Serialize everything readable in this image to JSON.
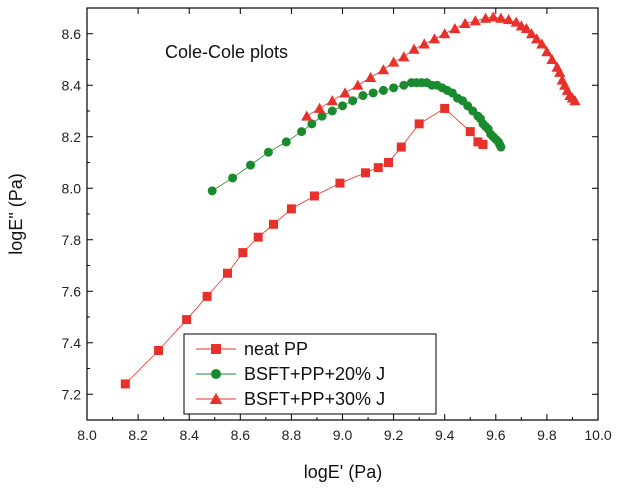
{
  "chart_data": {
    "type": "scatter",
    "annotation": "Cole-Cole plots",
    "xlabel": "logE' (Pa)",
    "ylabel": "logE\" (Pa)",
    "xlim": [
      8.0,
      10.0
    ],
    "ylim": [
      7.1,
      8.7
    ],
    "xticks": [
      "8.0",
      "8.2",
      "8.4",
      "8.6",
      "8.8",
      "9.0",
      "9.2",
      "9.4",
      "9.6",
      "9.8",
      "10.0"
    ],
    "yticks": [
      "7.2",
      "7.4",
      "7.6",
      "7.8",
      "8.0",
      "8.2",
      "8.4",
      "8.6"
    ],
    "legend_position": "bottom-center",
    "series": [
      {
        "name": "neat PP",
        "marker": "square",
        "color": "#e8312a",
        "x": [
          8.15,
          8.28,
          8.39,
          8.47,
          8.55,
          8.61,
          8.67,
          8.73,
          8.8,
          8.89,
          8.99,
          9.09,
          9.14,
          9.18,
          9.23,
          9.3,
          9.4,
          9.5,
          9.53,
          9.55
        ],
        "y": [
          7.24,
          7.37,
          7.49,
          7.58,
          7.67,
          7.75,
          7.81,
          7.86,
          7.92,
          7.97,
          8.02,
          8.06,
          8.08,
          8.1,
          8.16,
          8.25,
          8.31,
          8.22,
          8.18,
          8.17
        ]
      },
      {
        "name": "BSFT+PP+20% J",
        "marker": "circle",
        "color": "#1a8a2e",
        "x": [
          8.49,
          8.57,
          8.64,
          8.71,
          8.78,
          8.84,
          8.88,
          8.92,
          8.96,
          9.0,
          9.04,
          9.08,
          9.12,
          9.16,
          9.2,
          9.24,
          9.27,
          9.29,
          9.31,
          9.33,
          9.35,
          9.37,
          9.39,
          9.41,
          9.43,
          9.45,
          9.47,
          9.49,
          9.51,
          9.53,
          9.54,
          9.55,
          9.56,
          9.57,
          9.58,
          9.59,
          9.6,
          9.61,
          9.615,
          9.62
        ],
        "y": [
          7.99,
          8.04,
          8.09,
          8.14,
          8.18,
          8.22,
          8.25,
          8.28,
          8.3,
          8.32,
          8.34,
          8.36,
          8.37,
          8.38,
          8.39,
          8.4,
          8.41,
          8.41,
          8.41,
          8.41,
          8.4,
          8.4,
          8.39,
          8.38,
          8.37,
          8.35,
          8.34,
          8.32,
          8.3,
          8.28,
          8.27,
          8.25,
          8.24,
          8.23,
          8.21,
          8.2,
          8.19,
          8.18,
          8.17,
          8.16
        ]
      },
      {
        "name": "BSFT+PP+30% J",
        "marker": "triangle",
        "color": "#e8312a",
        "x": [
          8.86,
          8.91,
          8.96,
          9.01,
          9.06,
          9.11,
          9.16,
          9.2,
          9.24,
          9.28,
          9.32,
          9.36,
          9.4,
          9.44,
          9.48,
          9.52,
          9.56,
          9.59,
          9.62,
          9.65,
          9.68,
          9.7,
          9.72,
          9.74,
          9.76,
          9.78,
          9.8,
          9.82,
          9.84,
          9.85,
          9.86,
          9.87,
          9.88,
          9.89,
          9.9,
          9.91
        ],
        "y": [
          8.28,
          8.31,
          8.34,
          8.37,
          8.4,
          8.43,
          8.46,
          8.49,
          8.51,
          8.54,
          8.56,
          8.58,
          8.6,
          8.62,
          8.64,
          8.65,
          8.66,
          8.665,
          8.66,
          8.655,
          8.645,
          8.63,
          8.62,
          8.6,
          8.58,
          8.56,
          8.53,
          8.5,
          8.47,
          8.45,
          8.42,
          8.4,
          8.38,
          8.36,
          8.35,
          8.34
        ]
      }
    ]
  },
  "colors": {
    "red": "#e8312a",
    "green": "#1a8a2e",
    "axis": "#000000"
  }
}
